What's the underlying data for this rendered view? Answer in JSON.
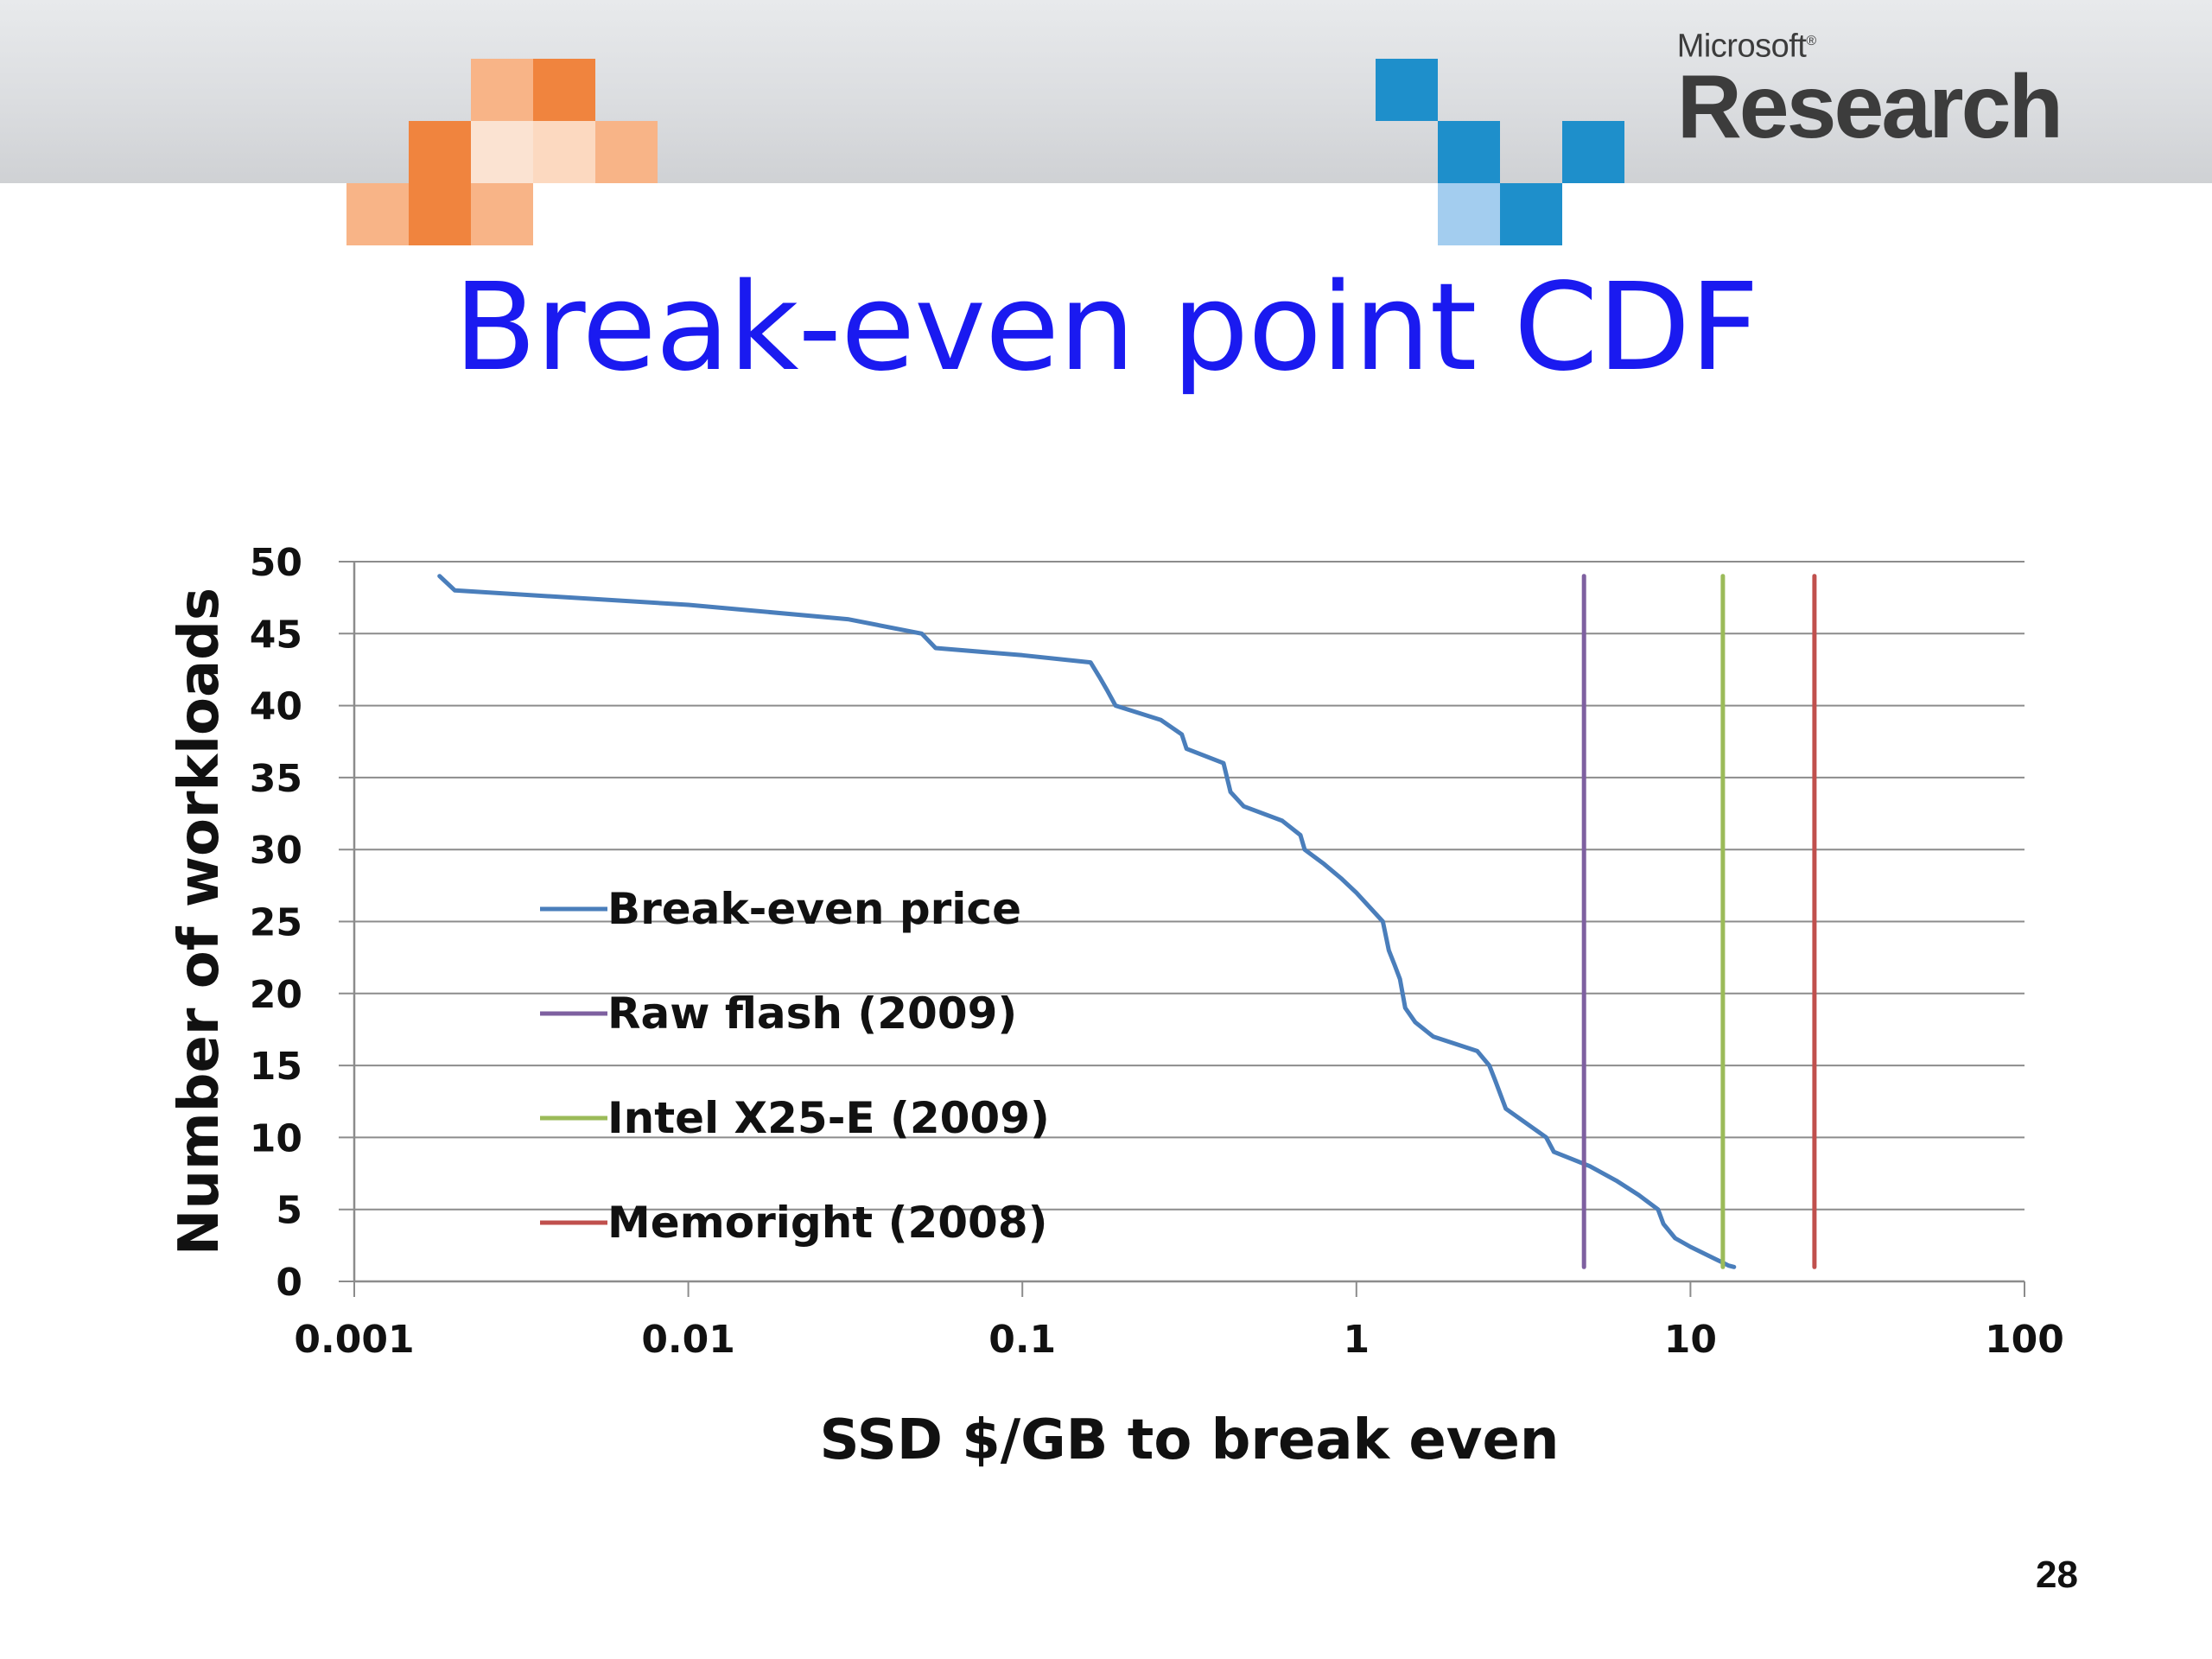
{
  "branding": {
    "company": "Microsoft",
    "trademark": "®",
    "division": "Research"
  },
  "slide": {
    "title": "Break-even point CDF",
    "page_number": "28"
  },
  "colors": {
    "title": "#1a1af0",
    "orange_dark": "#f0843e",
    "orange_mid": "#f8b487",
    "orange_light": "#fcd9c0",
    "blue_dark": "#1e8fcb",
    "blue_light": "#a3cdef",
    "grid": "#8c8c8c"
  },
  "chart_data": {
    "type": "line",
    "title": "",
    "xlabel": "SSD $/GB to break even",
    "ylabel": "Number of workloads",
    "xscale": "log",
    "xlim": [
      0.001,
      100
    ],
    "ylim": [
      0,
      50
    ],
    "x_ticks": [
      "0.001",
      "0.01",
      "0.1",
      "1",
      "10",
      "100"
    ],
    "y_ticks": [
      "0",
      "5",
      "10",
      "15",
      "20",
      "25",
      "30",
      "35",
      "40",
      "45",
      "50"
    ],
    "grid": "horizontal",
    "legend_position": "center-left",
    "series": [
      {
        "name": "Break-even price",
        "color": "#4a7ebb",
        "x": [
          0.0018,
          0.002,
          0.01,
          0.03,
          0.05,
          0.055,
          0.1,
          0.16,
          0.17,
          0.18,
          0.19,
          0.26,
          0.3,
          0.31,
          0.4,
          0.42,
          0.46,
          0.6,
          0.68,
          0.7,
          0.8,
          0.9,
          1.0,
          1.2,
          1.25,
          1.3,
          1.35,
          1.4,
          1.5,
          1.7,
          2.3,
          2.5,
          2.6,
          2.8,
          3.7,
          3.9,
          5.0,
          6.0,
          7.0,
          8.0,
          8.3,
          9.0,
          10.0,
          12.0,
          12.5,
          13.0,
          13.5
        ],
        "y": [
          49,
          48,
          47,
          46,
          45,
          44,
          43.5,
          43,
          42,
          41,
          40,
          39,
          38,
          37,
          36,
          34,
          33,
          32,
          31,
          30,
          29,
          28,
          27,
          25,
          23,
          22,
          21,
          19,
          18,
          17,
          16,
          15,
          14,
          12,
          10,
          9,
          8,
          7,
          6,
          5,
          4,
          3,
          2.4,
          1.5,
          1.3,
          1.1,
          1.0
        ]
      },
      {
        "name": "Raw flash (2009)",
        "color": "#7e60a0",
        "x": [
          4.8,
          4.8
        ],
        "y": [
          1,
          49
        ]
      },
      {
        "name": "Intel X25-E (2009)",
        "color": "#9bbb59",
        "x": [
          12.5,
          12.5
        ],
        "y": [
          1,
          49
        ]
      },
      {
        "name": "Memoright (2008)",
        "color": "#c0504d",
        "x": [
          23.5,
          23.5
        ],
        "y": [
          1,
          49
        ]
      }
    ]
  }
}
